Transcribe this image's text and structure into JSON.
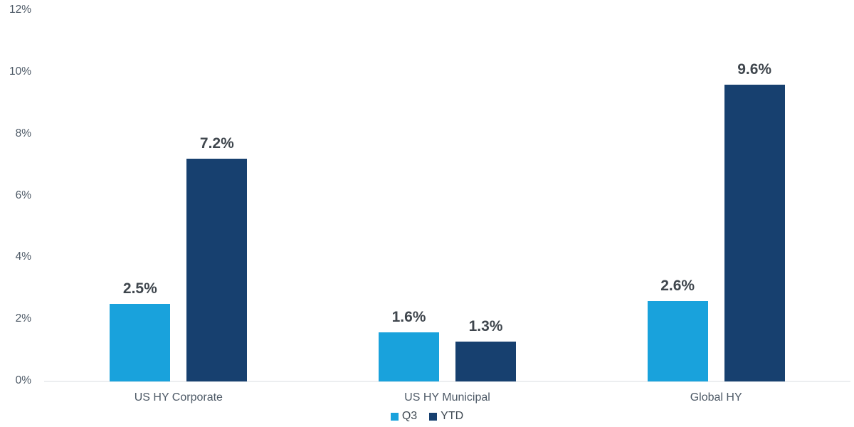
{
  "chart_data": {
    "type": "bar",
    "title": "",
    "xlabel": "",
    "ylabel": "",
    "categories": [
      "US HY Corporate",
      "US HY Municipal",
      "Global HY"
    ],
    "series": [
      {
        "name": "Q3",
        "color": "#19a2dc",
        "values": [
          2.5,
          1.6,
          2.6
        ],
        "labels": [
          "2.5%",
          "1.6%",
          "2.6%"
        ]
      },
      {
        "name": "YTD",
        "color": "#17406f",
        "values": [
          7.2,
          1.3,
          9.6
        ],
        "labels": [
          "7.2%",
          "1.3%",
          "9.6%"
        ]
      }
    ],
    "ylim": [
      0,
      12
    ],
    "yticks": [
      0,
      2,
      4,
      6,
      8,
      10,
      12
    ],
    "ytick_labels": [
      "0%",
      "2%",
      "4%",
      "6%",
      "8%",
      "10%",
      "12%"
    ],
    "grid": false,
    "legend_position": "bottom-center"
  },
  "colors": {
    "series_q3": "#19a2dc",
    "series_ytd": "#17406f",
    "axis_line": "#eceef0",
    "tick_label_text": "#4d5966",
    "data_label_text": "#3f464d"
  }
}
